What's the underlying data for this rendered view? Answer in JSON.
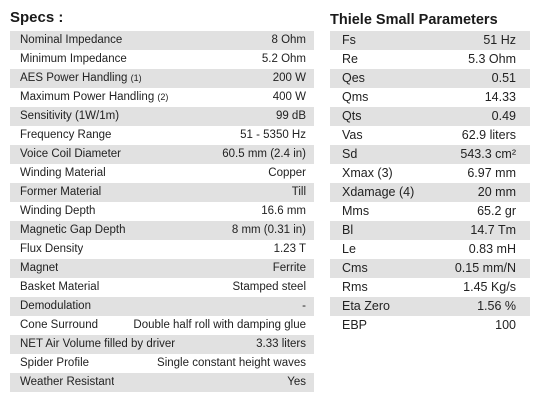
{
  "specs": {
    "title": "Specs :",
    "rows": [
      {
        "label": "Nominal Impedance",
        "note": "",
        "value": "8 Ohm"
      },
      {
        "label": "Minimum Impedance",
        "note": "",
        "value": "5.2 Ohm"
      },
      {
        "label": "AES Power Handling",
        "note": "(1)",
        "value": "200 W"
      },
      {
        "label": "Maximum Power Handling",
        "note": "(2)",
        "value": "400 W"
      },
      {
        "label": "Sensitivity (1W/1m)",
        "note": "",
        "value": "99 dB"
      },
      {
        "label": "Frequency Range",
        "note": "",
        "value": "51 - 5350 Hz"
      },
      {
        "label": "Voice Coil Diameter",
        "note": "",
        "value": "60.5 mm (2.4 in)"
      },
      {
        "label": "Winding Material",
        "note": "",
        "value": "Copper"
      },
      {
        "label": "Former Material",
        "note": "",
        "value": "Till"
      },
      {
        "label": "Winding Depth",
        "note": "",
        "value": "16.6 mm"
      },
      {
        "label": "Magnetic Gap Depth",
        "note": "",
        "value": "8 mm (0.31 in)"
      },
      {
        "label": "Flux Density",
        "note": "",
        "value": "1.23 T"
      },
      {
        "label": "Magnet",
        "note": "",
        "value": "Ferrite"
      },
      {
        "label": "Basket Material",
        "note": "",
        "value": "Stamped steel"
      },
      {
        "label": "Demodulation",
        "note": "",
        "value": "-"
      },
      {
        "label": "Cone Surround",
        "note": "",
        "value": "Double half roll with damping glue"
      },
      {
        "label": "NET Air Volume filled by driver",
        "note": "",
        "value": "3.33 liters"
      },
      {
        "label": "Spider Profile",
        "note": "",
        "value": "Single constant height waves"
      },
      {
        "label": "Weather Resistant",
        "note": "",
        "value": "Yes"
      }
    ]
  },
  "thiele_small": {
    "title": "Thiele Small Parameters",
    "rows": [
      {
        "label": "Fs",
        "value": "51 Hz"
      },
      {
        "label": "Re",
        "value": "5.3 Ohm"
      },
      {
        "label": "Qes",
        "value": "0.51"
      },
      {
        "label": "Qms",
        "value": "14.33"
      },
      {
        "label": "Qts",
        "value": "0.49"
      },
      {
        "label": "Vas",
        "value": "62.9 liters"
      },
      {
        "label": "Sd",
        "value": "543.3 cm²"
      },
      {
        "label": "Xmax (3)",
        "value": "6.97 mm"
      },
      {
        "label": "Xdamage (4)",
        "value": "20 mm"
      },
      {
        "label": "Mms",
        "value": "65.2 gr"
      },
      {
        "label": "Bl",
        "value": "14.7 Tm"
      },
      {
        "label": "Le",
        "value": "0.83 mH"
      },
      {
        "label": "Cms",
        "value": "0.15 mm/N"
      },
      {
        "label": "Rms",
        "value": "1.45 Kg/s"
      },
      {
        "label": "Eta Zero",
        "value": "1.56 %"
      },
      {
        "label": "EBP",
        "value": "100"
      }
    ]
  },
  "colors": {
    "row_shade": "#e1e1e1",
    "text": "#222222"
  }
}
